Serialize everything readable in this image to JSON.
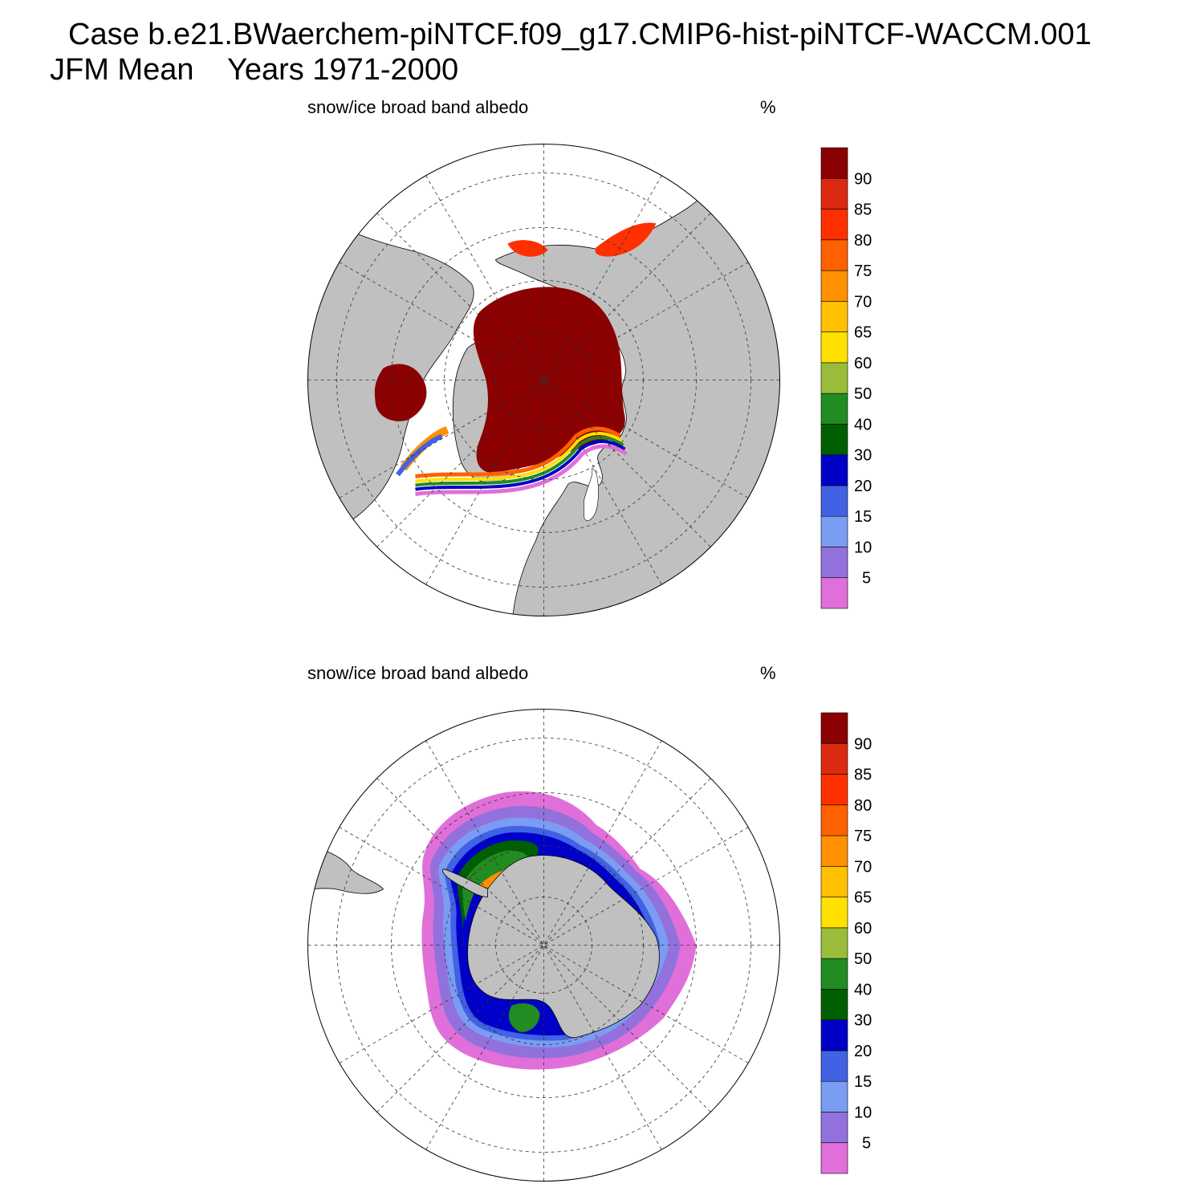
{
  "figure": {
    "title": "Case b.e21.BWaerchem-piNTCF.f09_g17.CMIP6-hist-piNTCF-WACCM.001",
    "subtitle": "JFM Mean    Years 1971-2000"
  },
  "panels": [
    {
      "hemisphere": "north",
      "variable_label": "snow/ice broad band albedo",
      "units": "%"
    },
    {
      "hemisphere": "south",
      "variable_label": "snow/ice broad band albedo",
      "units": "%"
    }
  ],
  "colorbar": {
    "tick_labels": [
      "5",
      "10",
      "15",
      "20",
      "30",
      "40",
      "50",
      "60",
      "65",
      "70",
      "75",
      "80",
      "85",
      "90"
    ],
    "colors_bottom_to_top": [
      "#e06fd9",
      "#9271dc",
      "#7b9cf3",
      "#4062e3",
      "#0000c8",
      "#005f00",
      "#228b22",
      "#99bd3a",
      "#ffe000",
      "#ffc000",
      "#ff9000",
      "#ff6000",
      "#ff3000",
      "#dc2a12",
      "#8b0000"
    ]
  },
  "colors": {
    "land": "#c0c0c0",
    "ocean": "#ffffff"
  }
}
